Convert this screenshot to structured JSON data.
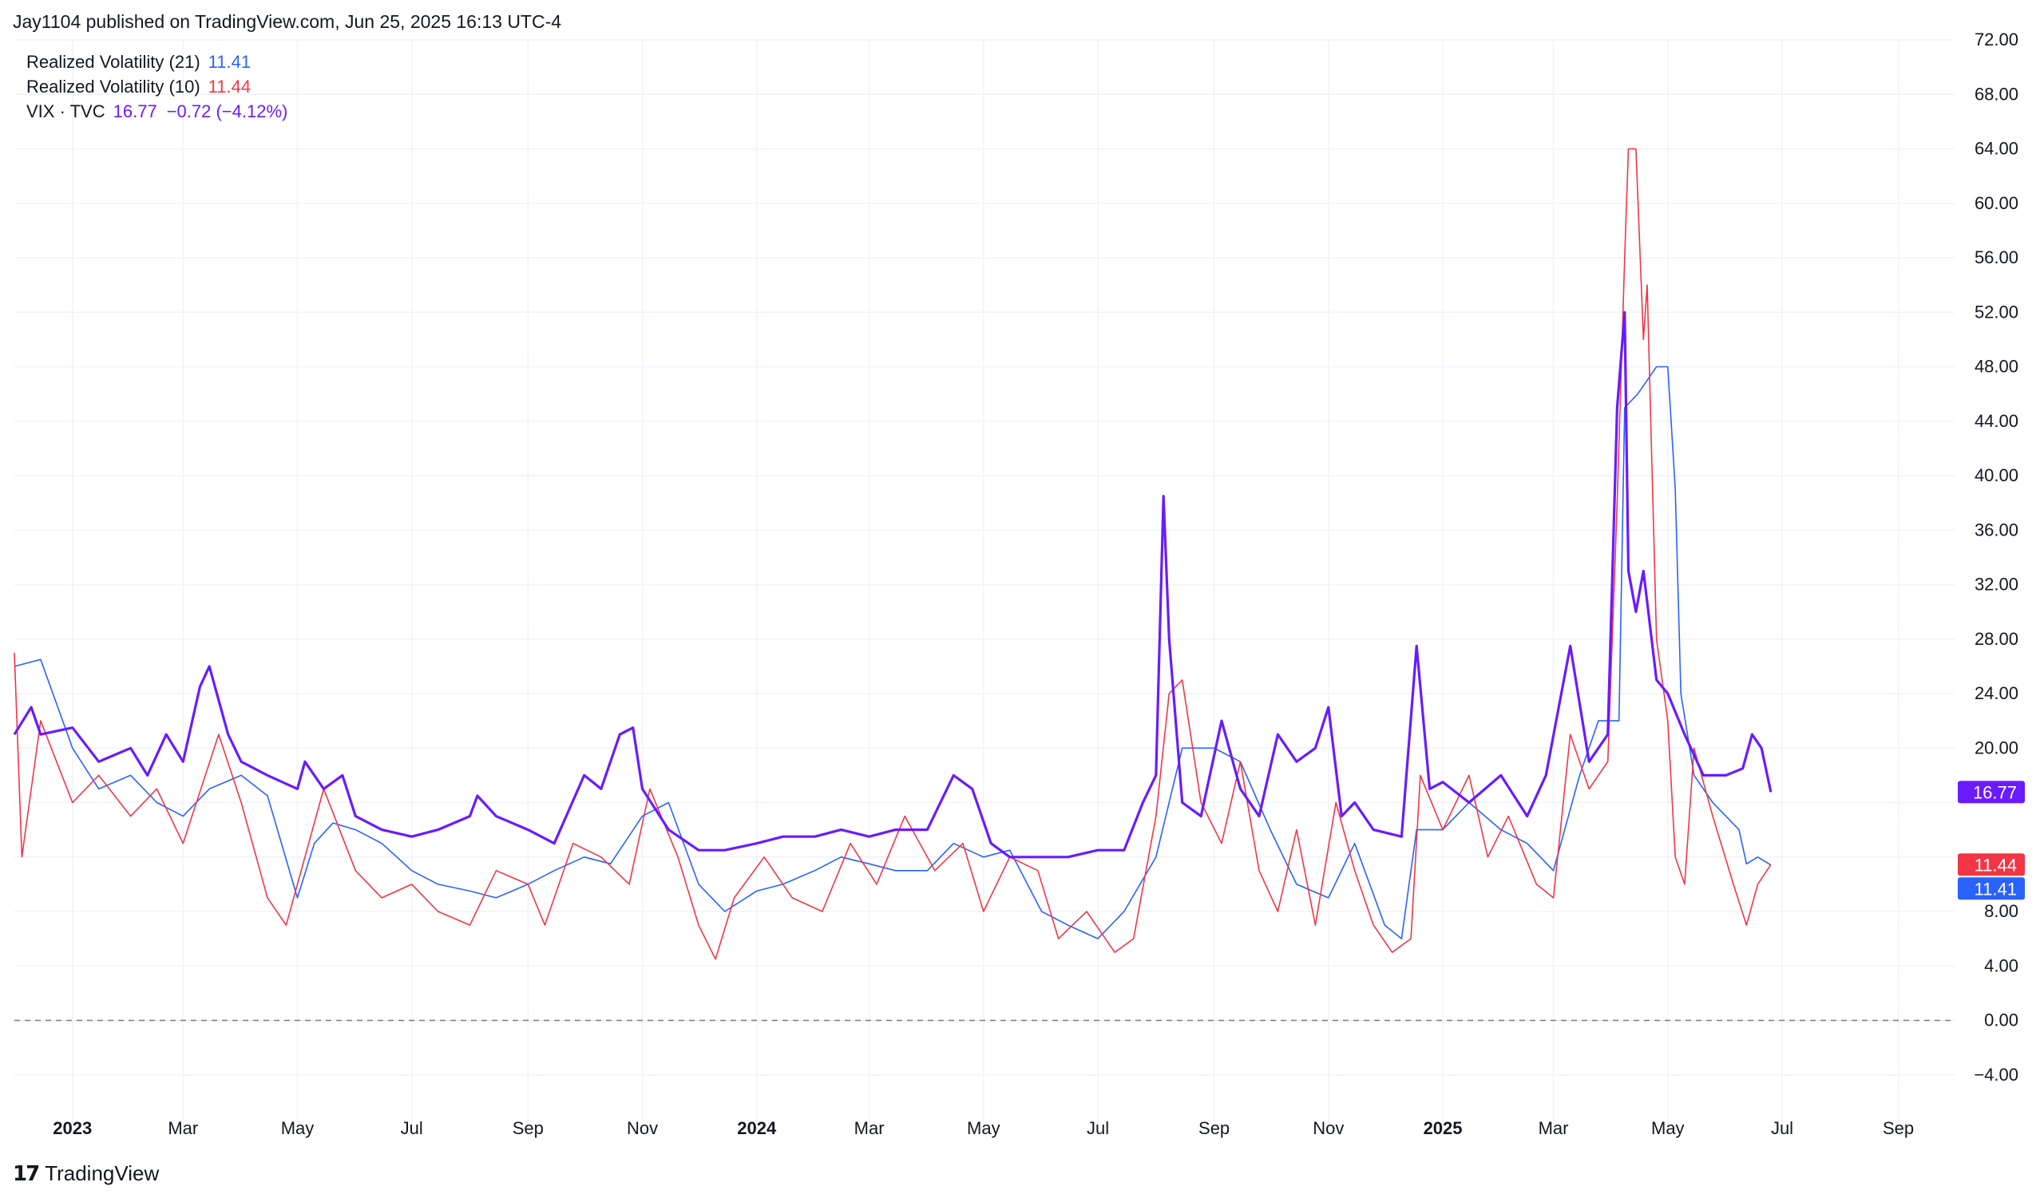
{
  "header": {
    "published": "Jay1104 published on TradingView.com, Jun 25, 2025 16:13 UTC-4"
  },
  "brand": {
    "name": "TradingView",
    "logo_icon": "tv-logo-icon"
  },
  "legend": [
    {
      "label": "Realized Volatility (21)",
      "value": "11.41",
      "color": "#2962ff"
    },
    {
      "label": "Realized Volatility (10)",
      "value": "11.44",
      "color": "#f23645"
    },
    {
      "label": "VIX · TVC",
      "value": "16.77",
      "change": "−0.72 (−4.12%)",
      "color": "#6a1bff"
    }
  ],
  "chart_data": {
    "type": "line",
    "x_range": [
      "2022-12-01",
      "2025-10-01"
    ],
    "y_range": [
      -8,
      72
    ],
    "y_ticks": [
      -4,
      0,
      4,
      8,
      12,
      16,
      20,
      24,
      28,
      32,
      36,
      40,
      44,
      48,
      52,
      56,
      60,
      64,
      68,
      72
    ],
    "y_tick_labels": [
      "−4.00",
      "0.00",
      "4.00",
      "8.00",
      "",
      "",
      "20.00",
      "24.00",
      "28.00",
      "32.00",
      "36.00",
      "40.00",
      "44.00",
      "48.00",
      "52.00",
      "56.00",
      "60.00",
      "64.00",
      "68.00",
      "72.00"
    ],
    "x_ticks": [
      {
        "date": "2023-01-01",
        "label": "2023",
        "bold": true
      },
      {
        "date": "2023-03-01",
        "label": "Mar"
      },
      {
        "date": "2023-05-01",
        "label": "May"
      },
      {
        "date": "2023-07-01",
        "label": "Jul"
      },
      {
        "date": "2023-09-01",
        "label": "Sep"
      },
      {
        "date": "2023-11-01",
        "label": "Nov"
      },
      {
        "date": "2024-01-01",
        "label": "2024",
        "bold": true
      },
      {
        "date": "2024-03-01",
        "label": "Mar"
      },
      {
        "date": "2024-05-01",
        "label": "May"
      },
      {
        "date": "2024-07-01",
        "label": "Jul"
      },
      {
        "date": "2024-09-01",
        "label": "Sep"
      },
      {
        "date": "2024-11-01",
        "label": "Nov"
      },
      {
        "date": "2025-01-01",
        "label": "2025",
        "bold": true
      },
      {
        "date": "2025-03-01",
        "label": "Mar"
      },
      {
        "date": "2025-05-01",
        "label": "May"
      },
      {
        "date": "2025-07-01",
        "label": "Jul"
      },
      {
        "date": "2025-09-01",
        "label": "Sep"
      }
    ],
    "zero_line": 0,
    "grid": true,
    "series": [
      {
        "name": "Realized Volatility (21)",
        "color": "#2962ff",
        "width": 1.6,
        "last_label": "11.41",
        "points": [
          [
            "2022-12-01",
            26
          ],
          [
            "2022-12-15",
            26.5
          ],
          [
            "2023-01-01",
            20
          ],
          [
            "2023-01-15",
            17
          ],
          [
            "2023-02-01",
            18
          ],
          [
            "2023-02-15",
            16
          ],
          [
            "2023-03-01",
            15
          ],
          [
            "2023-03-15",
            17
          ],
          [
            "2023-04-01",
            18
          ],
          [
            "2023-04-15",
            16.5
          ],
          [
            "2023-05-01",
            9
          ],
          [
            "2023-05-10",
            13
          ],
          [
            "2023-05-20",
            14.5
          ],
          [
            "2023-06-01",
            14
          ],
          [
            "2023-06-15",
            13
          ],
          [
            "2023-07-01",
            11
          ],
          [
            "2023-07-15",
            10
          ],
          [
            "2023-08-01",
            9.5
          ],
          [
            "2023-08-15",
            9
          ],
          [
            "2023-09-01",
            10
          ],
          [
            "2023-09-15",
            11
          ],
          [
            "2023-10-01",
            12
          ],
          [
            "2023-10-15",
            11.5
          ],
          [
            "2023-11-01",
            15
          ],
          [
            "2023-11-15",
            16
          ],
          [
            "2023-12-01",
            10
          ],
          [
            "2023-12-15",
            8
          ],
          [
            "2024-01-01",
            9.5
          ],
          [
            "2024-01-15",
            10
          ],
          [
            "2024-02-01",
            11
          ],
          [
            "2024-02-15",
            12
          ],
          [
            "2024-03-01",
            11.5
          ],
          [
            "2024-03-15",
            11
          ],
          [
            "2024-04-01",
            11
          ],
          [
            "2024-04-15",
            13
          ],
          [
            "2024-05-01",
            12
          ],
          [
            "2024-05-15",
            12.5
          ],
          [
            "2024-06-01",
            8
          ],
          [
            "2024-06-15",
            7
          ],
          [
            "2024-07-01",
            6
          ],
          [
            "2024-07-15",
            8
          ],
          [
            "2024-08-01",
            12
          ],
          [
            "2024-08-15",
            20
          ],
          [
            "2024-09-01",
            20
          ],
          [
            "2024-09-15",
            19
          ],
          [
            "2024-10-01",
            14
          ],
          [
            "2024-10-15",
            10
          ],
          [
            "2024-11-01",
            9
          ],
          [
            "2024-11-15",
            13
          ],
          [
            "2024-12-01",
            7
          ],
          [
            "2024-12-10",
            6
          ],
          [
            "2024-12-18",
            14
          ],
          [
            "2025-01-01",
            14
          ],
          [
            "2025-01-15",
            16
          ],
          [
            "2025-02-01",
            14
          ],
          [
            "2025-02-15",
            13
          ],
          [
            "2025-03-01",
            11
          ],
          [
            "2025-03-15",
            18
          ],
          [
            "2025-03-25",
            22
          ],
          [
            "2025-04-05",
            22
          ],
          [
            "2025-04-08",
            45
          ],
          [
            "2025-04-15",
            46
          ],
          [
            "2025-04-25",
            48
          ],
          [
            "2025-05-01",
            48
          ],
          [
            "2025-05-05",
            39
          ],
          [
            "2025-05-08",
            24
          ],
          [
            "2025-05-15",
            18
          ],
          [
            "2025-05-25",
            16
          ],
          [
            "2025-06-01",
            15
          ],
          [
            "2025-06-08",
            14
          ],
          [
            "2025-06-12",
            11.5
          ],
          [
            "2025-06-18",
            12
          ],
          [
            "2025-06-25",
            11.41
          ]
        ]
      },
      {
        "name": "Realized Volatility (10)",
        "color": "#f23645",
        "width": 1.6,
        "last_label": "11.44",
        "points": [
          [
            "2022-12-01",
            27
          ],
          [
            "2022-12-05",
            12
          ],
          [
            "2022-12-15",
            22
          ],
          [
            "2023-01-01",
            16
          ],
          [
            "2023-01-15",
            18
          ],
          [
            "2023-02-01",
            15
          ],
          [
            "2023-02-15",
            17
          ],
          [
            "2023-03-01",
            13
          ],
          [
            "2023-03-20",
            21
          ],
          [
            "2023-04-01",
            16
          ],
          [
            "2023-04-15",
            9
          ],
          [
            "2023-04-25",
            7
          ],
          [
            "2023-05-05",
            12
          ],
          [
            "2023-05-15",
            17
          ],
          [
            "2023-06-01",
            11
          ],
          [
            "2023-06-15",
            9
          ],
          [
            "2023-07-01",
            10
          ],
          [
            "2023-07-15",
            8
          ],
          [
            "2023-08-01",
            7
          ],
          [
            "2023-08-15",
            11
          ],
          [
            "2023-09-01",
            10
          ],
          [
            "2023-09-10",
            7
          ],
          [
            "2023-09-25",
            13
          ],
          [
            "2023-10-10",
            12
          ],
          [
            "2023-10-25",
            10
          ],
          [
            "2023-11-05",
            17
          ],
          [
            "2023-11-20",
            12
          ],
          [
            "2023-12-01",
            7
          ],
          [
            "2023-12-10",
            4.5
          ],
          [
            "2023-12-20",
            9
          ],
          [
            "2024-01-05",
            12
          ],
          [
            "2024-01-20",
            9
          ],
          [
            "2024-02-05",
            8
          ],
          [
            "2024-02-20",
            13
          ],
          [
            "2024-03-05",
            10
          ],
          [
            "2024-03-20",
            15
          ],
          [
            "2024-04-05",
            11
          ],
          [
            "2024-04-20",
            13
          ],
          [
            "2024-05-01",
            8
          ],
          [
            "2024-05-15",
            12
          ],
          [
            "2024-05-30",
            11
          ],
          [
            "2024-06-10",
            6
          ],
          [
            "2024-06-25",
            8
          ],
          [
            "2024-07-10",
            5
          ],
          [
            "2024-07-20",
            6
          ],
          [
            "2024-08-01",
            15
          ],
          [
            "2024-08-08",
            24
          ],
          [
            "2024-08-15",
            25
          ],
          [
            "2024-08-25",
            16
          ],
          [
            "2024-09-05",
            13
          ],
          [
            "2024-09-15",
            19
          ],
          [
            "2024-09-25",
            11
          ],
          [
            "2024-10-05",
            8
          ],
          [
            "2024-10-15",
            14
          ],
          [
            "2024-10-25",
            7
          ],
          [
            "2024-11-05",
            16
          ],
          [
            "2024-11-15",
            11
          ],
          [
            "2024-11-25",
            7
          ],
          [
            "2024-12-05",
            5
          ],
          [
            "2024-12-15",
            6
          ],
          [
            "2024-12-20",
            18
          ],
          [
            "2025-01-01",
            14
          ],
          [
            "2025-01-15",
            18
          ],
          [
            "2025-01-25",
            12
          ],
          [
            "2025-02-05",
            15
          ],
          [
            "2025-02-20",
            10
          ],
          [
            "2025-03-01",
            9
          ],
          [
            "2025-03-10",
            21
          ],
          [
            "2025-03-20",
            17
          ],
          [
            "2025-03-30",
            19
          ],
          [
            "2025-04-04",
            38
          ],
          [
            "2025-04-08",
            56
          ],
          [
            "2025-04-10",
            64
          ],
          [
            "2025-04-14",
            64
          ],
          [
            "2025-04-18",
            50
          ],
          [
            "2025-04-20",
            54
          ],
          [
            "2025-04-25",
            28
          ],
          [
            "2025-05-01",
            22
          ],
          [
            "2025-05-05",
            12
          ],
          [
            "2025-05-10",
            10
          ],
          [
            "2025-05-15",
            20
          ],
          [
            "2025-05-25",
            15
          ],
          [
            "2025-06-05",
            10
          ],
          [
            "2025-06-12",
            7
          ],
          [
            "2025-06-18",
            10
          ],
          [
            "2025-06-25",
            11.44
          ]
        ]
      },
      {
        "name": "VIX · TVC",
        "color": "#6a1bff",
        "width": 3.2,
        "last_label": "16.77",
        "points": [
          [
            "2022-12-01",
            21
          ],
          [
            "2022-12-10",
            23
          ],
          [
            "2022-12-15",
            21
          ],
          [
            "2023-01-01",
            21.5
          ],
          [
            "2023-01-15",
            19
          ],
          [
            "2023-02-01",
            20
          ],
          [
            "2023-02-10",
            18
          ],
          [
            "2023-02-20",
            21
          ],
          [
            "2023-03-01",
            19
          ],
          [
            "2023-03-10",
            24.5
          ],
          [
            "2023-03-15",
            26
          ],
          [
            "2023-03-25",
            21
          ],
          [
            "2023-04-01",
            19
          ],
          [
            "2023-04-15",
            18
          ],
          [
            "2023-05-01",
            17
          ],
          [
            "2023-05-05",
            19
          ],
          [
            "2023-05-15",
            17
          ],
          [
            "2023-05-25",
            18
          ],
          [
            "2023-06-01",
            15
          ],
          [
            "2023-06-15",
            14
          ],
          [
            "2023-07-01",
            13.5
          ],
          [
            "2023-07-15",
            14
          ],
          [
            "2023-08-01",
            15
          ],
          [
            "2023-08-05",
            16.5
          ],
          [
            "2023-08-15",
            15
          ],
          [
            "2023-09-01",
            14
          ],
          [
            "2023-09-15",
            13
          ],
          [
            "2023-10-01",
            18
          ],
          [
            "2023-10-10",
            17
          ],
          [
            "2023-10-20",
            21
          ],
          [
            "2023-10-27",
            21.5
          ],
          [
            "2023-11-01",
            17
          ],
          [
            "2023-11-15",
            14
          ],
          [
            "2023-12-01",
            12.5
          ],
          [
            "2023-12-15",
            12.5
          ],
          [
            "2024-01-01",
            13
          ],
          [
            "2024-01-15",
            13.5
          ],
          [
            "2024-02-01",
            13.5
          ],
          [
            "2024-02-15",
            14
          ],
          [
            "2024-03-01",
            13.5
          ],
          [
            "2024-03-15",
            14
          ],
          [
            "2024-04-01",
            14
          ],
          [
            "2024-04-15",
            18
          ],
          [
            "2024-04-25",
            17
          ],
          [
            "2024-05-05",
            13
          ],
          [
            "2024-05-15",
            12
          ],
          [
            "2024-06-01",
            12
          ],
          [
            "2024-06-15",
            12
          ],
          [
            "2024-07-01",
            12.5
          ],
          [
            "2024-07-15",
            12.5
          ],
          [
            "2024-07-25",
            16
          ],
          [
            "2024-08-01",
            18
          ],
          [
            "2024-08-05",
            38.5
          ],
          [
            "2024-08-08",
            28
          ],
          [
            "2024-08-15",
            16
          ],
          [
            "2024-08-25",
            15
          ],
          [
            "2024-09-05",
            22
          ],
          [
            "2024-09-15",
            17
          ],
          [
            "2024-09-25",
            15
          ],
          [
            "2024-10-05",
            21
          ],
          [
            "2024-10-15",
            19
          ],
          [
            "2024-10-25",
            20
          ],
          [
            "2024-11-01",
            23
          ],
          [
            "2024-11-08",
            15
          ],
          [
            "2024-11-15",
            16
          ],
          [
            "2024-11-25",
            14
          ],
          [
            "2024-12-10",
            13.5
          ],
          [
            "2024-12-18",
            27.5
          ],
          [
            "2024-12-25",
            17
          ],
          [
            "2025-01-01",
            17.5
          ],
          [
            "2025-01-15",
            16
          ],
          [
            "2025-02-01",
            18
          ],
          [
            "2025-02-15",
            15
          ],
          [
            "2025-02-25",
            18
          ],
          [
            "2025-03-10",
            27.5
          ],
          [
            "2025-03-20",
            19
          ],
          [
            "2025-03-30",
            21
          ],
          [
            "2025-04-04",
            45
          ],
          [
            "2025-04-08",
            52
          ],
          [
            "2025-04-10",
            33
          ],
          [
            "2025-04-14",
            30
          ],
          [
            "2025-04-18",
            33
          ],
          [
            "2025-04-25",
            25
          ],
          [
            "2025-05-01",
            24
          ],
          [
            "2025-05-10",
            21
          ],
          [
            "2025-05-20",
            18
          ],
          [
            "2025-06-01",
            18
          ],
          [
            "2025-06-10",
            18.5
          ],
          [
            "2025-06-15",
            21
          ],
          [
            "2025-06-20",
            20
          ],
          [
            "2025-06-25",
            16.77
          ]
        ]
      }
    ]
  }
}
